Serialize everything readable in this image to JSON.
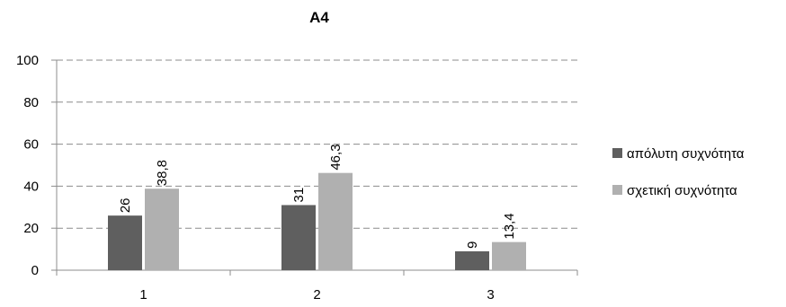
{
  "chart_data": {
    "type": "bar",
    "title": "A4",
    "xlabel": "",
    "ylabel": "",
    "categories": [
      "1",
      "2",
      "3"
    ],
    "ylim": [
      0,
      100
    ],
    "yticks": [
      "0",
      "20",
      "40",
      "60",
      "80",
      "100"
    ],
    "grid": true,
    "grid_style": "dashed",
    "legend_position": "right",
    "series": [
      {
        "name": "απόλυτη συχνότητα",
        "color": "#5f5f5f",
        "values": [
          26,
          31,
          9
        ],
        "labels": [
          "26",
          "31",
          "9"
        ]
      },
      {
        "name": "σχετική συχνότητα",
        "color": "#b0b0b0",
        "values": [
          38.8,
          46.3,
          13.4
        ],
        "labels": [
          "38,8",
          "46,3",
          "13,4"
        ]
      }
    ]
  }
}
